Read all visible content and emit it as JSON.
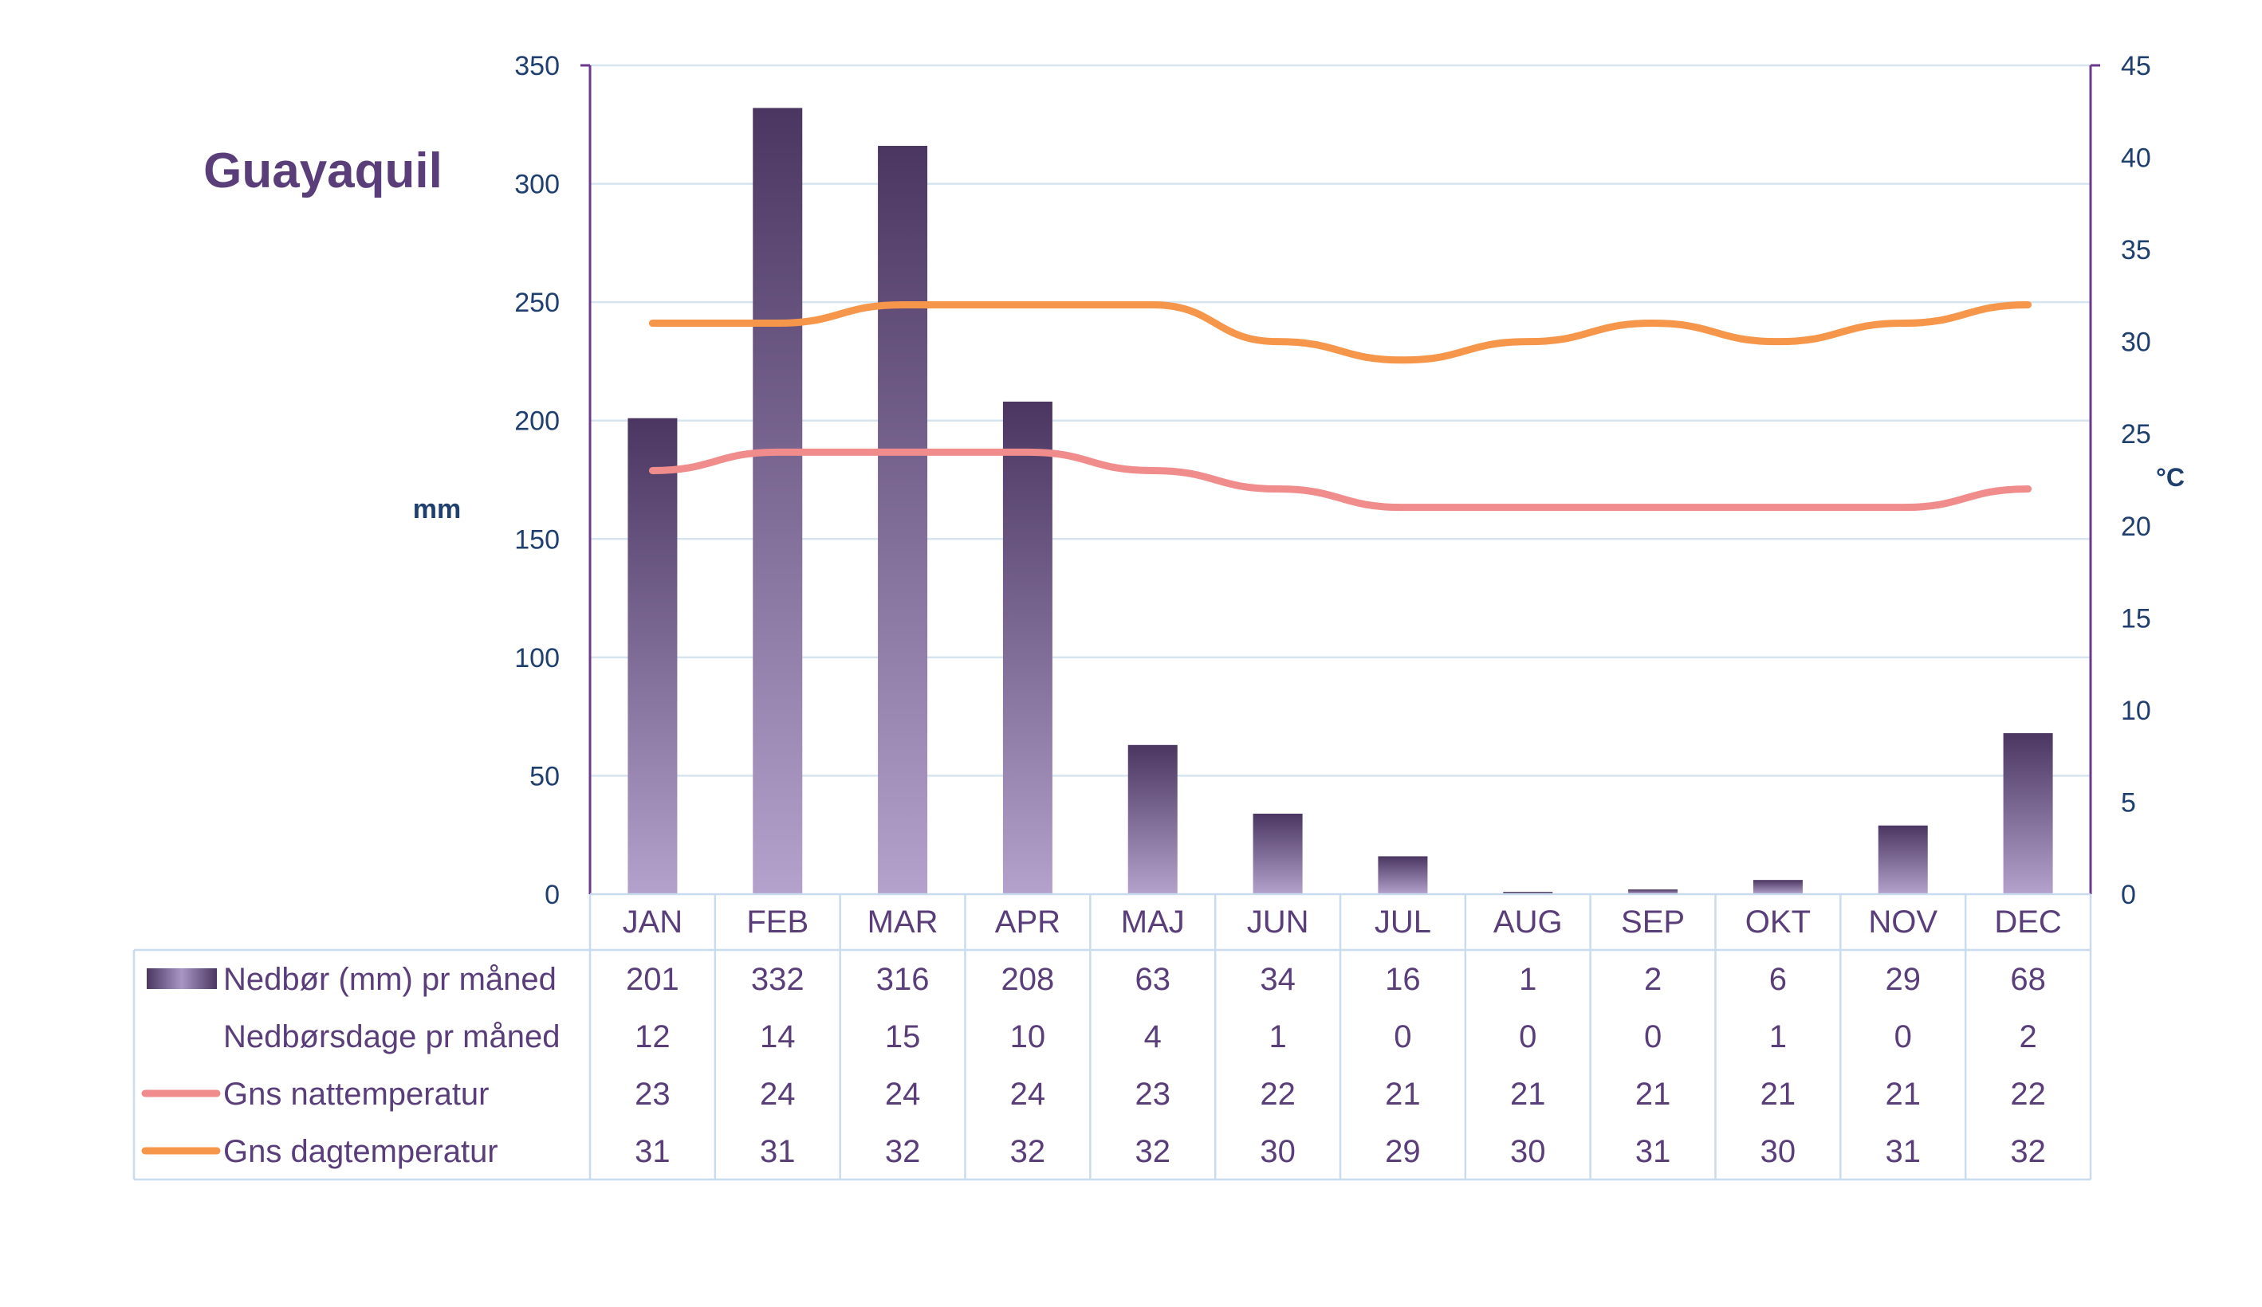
{
  "chart_data": {
    "type": "bar",
    "title": "Guayaquil",
    "ylabel_left": "mm",
    "ylabel_right": "°C",
    "ylim_left": [
      0,
      350
    ],
    "yticks_left": [
      0,
      50,
      100,
      150,
      200,
      250,
      300,
      350
    ],
    "ylim_right": [
      0,
      45
    ],
    "yticks_right": [
      0,
      5,
      10,
      15,
      20,
      25,
      30,
      35,
      40,
      45
    ],
    "grid": true,
    "legend": "data-table-below",
    "categories": [
      "JAN",
      "FEB",
      "MAR",
      "APR",
      "MAJ",
      "JUN",
      "JUL",
      "AUG",
      "SEP",
      "OKT",
      "NOV",
      "DEC"
    ],
    "series": [
      {
        "name": "Nedbør (mm) pr måned",
        "kind": "bar",
        "axis": "left",
        "values": [
          201,
          332,
          316,
          208,
          63,
          34,
          16,
          1,
          2,
          6,
          29,
          68
        ]
      },
      {
        "name": "Nedbørsdage pr måned",
        "kind": "table-only",
        "values": [
          12,
          14,
          15,
          10,
          4,
          1,
          0,
          0,
          0,
          1,
          0,
          2
        ]
      },
      {
        "name": "Gns nattemperatur",
        "kind": "line",
        "axis": "right",
        "color": "#f08c8c",
        "values": [
          23,
          24,
          24,
          24,
          23,
          22,
          21,
          21,
          21,
          21,
          21,
          22
        ]
      },
      {
        "name": "Gns dagtemperatur",
        "kind": "line",
        "axis": "right",
        "color": "#f5964a",
        "values": [
          31,
          31,
          32,
          32,
          32,
          30,
          29,
          30,
          31,
          30,
          31,
          32
        ]
      }
    ]
  },
  "colors": {
    "bar_top": "#4a3660",
    "bar_bottom": "#b4a2cc",
    "axis": "#6b3a8f",
    "grid": "#d6e4f0",
    "tick_text": "#1f3f6e",
    "title": "#5a3e7a",
    "table_text": "#5a3e7a",
    "table_border": "#c9dcef"
  }
}
